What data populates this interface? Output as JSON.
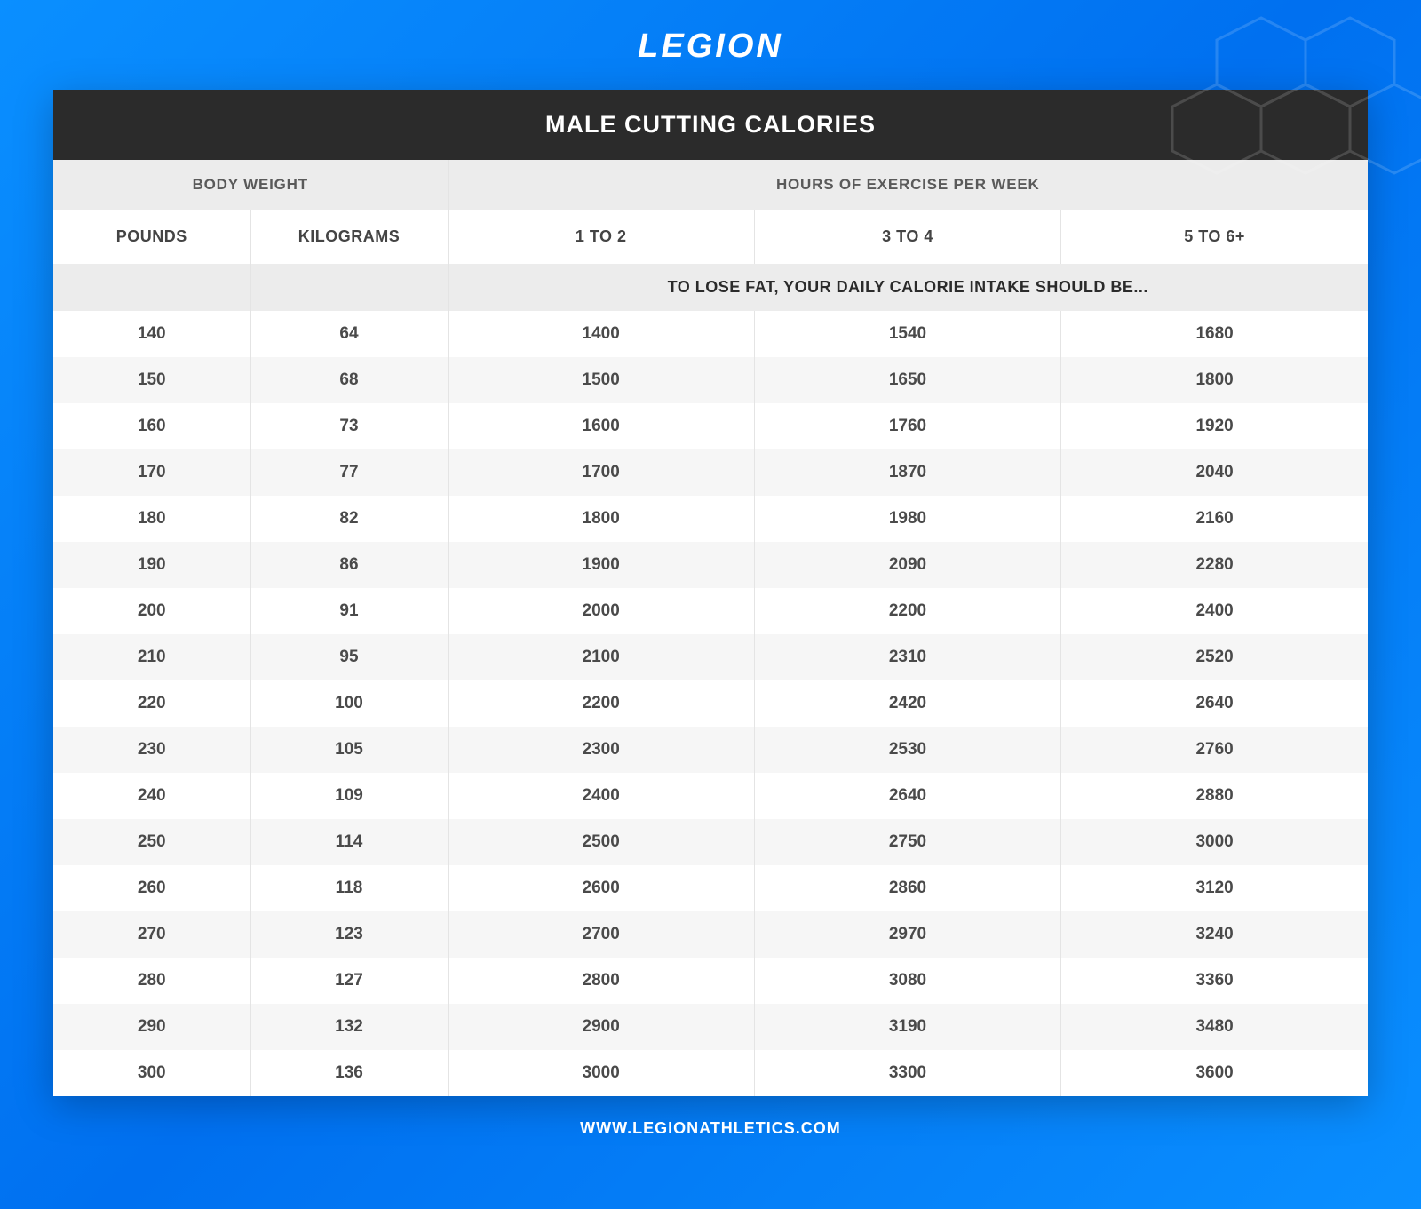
{
  "brand": {
    "name": "LEGION"
  },
  "title": "MALE CUTTING CALORIES",
  "footer_url": "WWW.LEGIONATHLETICS.COM",
  "colors": {
    "bg_gradient_from": "#0a8fff",
    "bg_gradient_to": "#0070f0",
    "title_bar_bg": "#2b2b2b",
    "title_bar_text": "#ffffff",
    "group_header_bg": "#ececec",
    "group_header_text": "#5a5a5a",
    "unit_header_text": "#444444",
    "row_even_bg": "#f6f6f6",
    "row_odd_bg": "#ffffff",
    "cell_text": "#4a4a4a",
    "border": "#e4e4e4",
    "footer_text": "#ffffff"
  },
  "table": {
    "type": "table",
    "group_headers": {
      "weight": "BODY WEIGHT",
      "exercise": "HOURS OF EXERCISE PER WEEK"
    },
    "unit_headers": {
      "pounds": "POUNDS",
      "kilograms": "KILOGRAMS",
      "h1": "1 TO 2",
      "h2": "3 TO 4",
      "h3": "5 TO 6+"
    },
    "caption": "TO LOSE FAT, YOUR DAILY CALORIE INTAKE SHOULD BE...",
    "column_widths_pct": [
      15,
      15,
      23.333,
      23.333,
      23.333
    ],
    "rows": [
      {
        "pounds": 140,
        "kilograms": 64,
        "c1": 1400,
        "c2": 1540,
        "c3": 1680
      },
      {
        "pounds": 150,
        "kilograms": 68,
        "c1": 1500,
        "c2": 1650,
        "c3": 1800
      },
      {
        "pounds": 160,
        "kilograms": 73,
        "c1": 1600,
        "c2": 1760,
        "c3": 1920
      },
      {
        "pounds": 170,
        "kilograms": 77,
        "c1": 1700,
        "c2": 1870,
        "c3": 2040
      },
      {
        "pounds": 180,
        "kilograms": 82,
        "c1": 1800,
        "c2": 1980,
        "c3": 2160
      },
      {
        "pounds": 190,
        "kilograms": 86,
        "c1": 1900,
        "c2": 2090,
        "c3": 2280
      },
      {
        "pounds": 200,
        "kilograms": 91,
        "c1": 2000,
        "c2": 2200,
        "c3": 2400
      },
      {
        "pounds": 210,
        "kilograms": 95,
        "c1": 2100,
        "c2": 2310,
        "c3": 2520
      },
      {
        "pounds": 220,
        "kilograms": 100,
        "c1": 2200,
        "c2": 2420,
        "c3": 2640
      },
      {
        "pounds": 230,
        "kilograms": 105,
        "c1": 2300,
        "c2": 2530,
        "c3": 2760
      },
      {
        "pounds": 240,
        "kilograms": 109,
        "c1": 2400,
        "c2": 2640,
        "c3": 2880
      },
      {
        "pounds": 250,
        "kilograms": 114,
        "c1": 2500,
        "c2": 2750,
        "c3": 3000
      },
      {
        "pounds": 260,
        "kilograms": 118,
        "c1": 2600,
        "c2": 2860,
        "c3": 3120
      },
      {
        "pounds": 270,
        "kilograms": 123,
        "c1": 2700,
        "c2": 2970,
        "c3": 3240
      },
      {
        "pounds": 280,
        "kilograms": 127,
        "c1": 2800,
        "c2": 3080,
        "c3": 3360
      },
      {
        "pounds": 290,
        "kilograms": 132,
        "c1": 2900,
        "c2": 3190,
        "c3": 3480
      },
      {
        "pounds": 300,
        "kilograms": 136,
        "c1": 3000,
        "c2": 3300,
        "c3": 3600
      }
    ]
  }
}
